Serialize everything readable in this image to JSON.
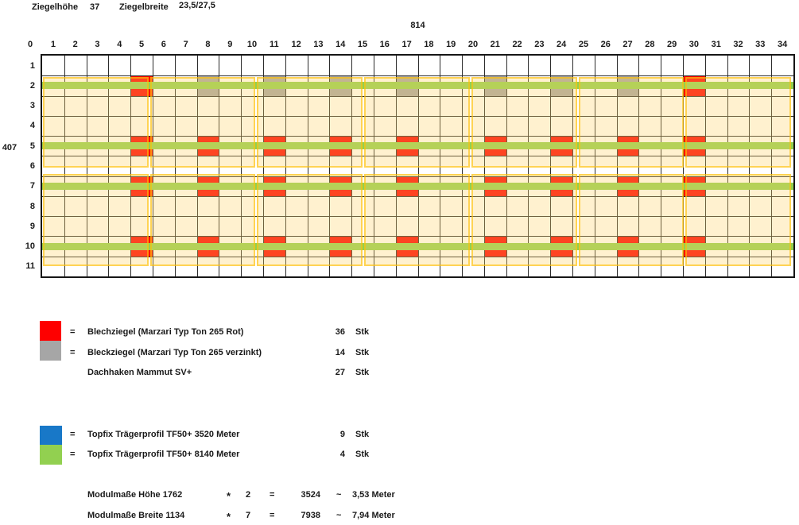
{
  "header": {
    "tile_height_label": "Ziegelhöhe",
    "tile_height_value": "37",
    "tile_width_label": "Ziegelbreite",
    "tile_width_value": "23,5/27,5",
    "grid_width_dim": "814",
    "grid_height_dim": "407"
  },
  "grid": {
    "col_labels": [
      "0",
      "1",
      "2",
      "3",
      "4",
      "5",
      "6",
      "7",
      "8",
      "9",
      "10",
      "11",
      "12",
      "13",
      "14",
      "15",
      "16",
      "17",
      "18",
      "19",
      "20",
      "21",
      "22",
      "23",
      "24",
      "25",
      "26",
      "27",
      "28",
      "29",
      "30",
      "31",
      "32",
      "33",
      "34"
    ],
    "row_labels": [
      "1",
      "2",
      "3",
      "4",
      "5",
      "6",
      "7",
      "8",
      "9",
      "10",
      "11"
    ],
    "rail_rows": [
      2,
      5,
      7,
      10
    ],
    "modules_across": 7,
    "modules_down": 2,
    "marked_cells": {
      "red": [
        [
          2,
          5
        ],
        [
          2,
          30
        ],
        [
          5,
          5
        ],
        [
          5,
          8
        ],
        [
          5,
          11
        ],
        [
          5,
          14
        ],
        [
          5,
          17
        ],
        [
          5,
          21
        ],
        [
          5,
          24
        ],
        [
          5,
          27
        ],
        [
          5,
          30
        ],
        [
          7,
          5
        ],
        [
          7,
          8
        ],
        [
          7,
          11
        ],
        [
          7,
          14
        ],
        [
          7,
          17
        ],
        [
          7,
          21
        ],
        [
          7,
          24
        ],
        [
          7,
          27
        ],
        [
          7,
          30
        ],
        [
          10,
          5
        ],
        [
          10,
          8
        ],
        [
          10,
          11
        ],
        [
          10,
          14
        ],
        [
          10,
          17
        ],
        [
          10,
          21
        ],
        [
          10,
          24
        ],
        [
          10,
          27
        ],
        [
          10,
          30
        ]
      ],
      "gray": [
        [
          2,
          8
        ],
        [
          2,
          11
        ],
        [
          2,
          14
        ],
        [
          2,
          17
        ],
        [
          2,
          21
        ],
        [
          2,
          24
        ],
        [
          2,
          27
        ]
      ]
    }
  },
  "colors": {
    "red": "#FE0000",
    "gray": "#A6A6A6",
    "blue": "#1878C8",
    "green": "#92D050",
    "module_fill": "rgba(255,213,106,0.32)",
    "module_border": "rgba(255,192,0,0.6)"
  },
  "legend": {
    "tiles": [
      {
        "eq": "=",
        "label": "Blechziegel (Marzari Typ Ton 265 Rot)",
        "qty": "36",
        "unit": "Stk"
      },
      {
        "eq": "=",
        "label": "Bleckziegel (Marzari Typ Ton 265 verzinkt)",
        "qty": "14",
        "unit": "Stk"
      },
      {
        "eq": "",
        "label": "Dachhaken Mammut SV+",
        "qty": "27",
        "unit": "Stk"
      }
    ],
    "profiles": [
      {
        "eq": "=",
        "label": "Topfix Trägerprofil TF50+ 3520 Meter",
        "qty": "9",
        "unit": "Stk"
      },
      {
        "eq": "=",
        "label": "Topfix Trägerprofil TF50+ 8140 Meter",
        "qty": "4",
        "unit": "Stk"
      }
    ]
  },
  "calc": [
    {
      "label": "Modulmaße Höhe 1762",
      "op": "*",
      "factor": "2",
      "eq": "=",
      "result": "3524",
      "approx": "~",
      "meters": "3,53 Meter"
    },
    {
      "label": "Modulmaße Breite 1134",
      "op": "*",
      "factor": "7",
      "eq": "=",
      "result": "7938",
      "approx": "~",
      "meters": "7,94 Meter"
    }
  ]
}
